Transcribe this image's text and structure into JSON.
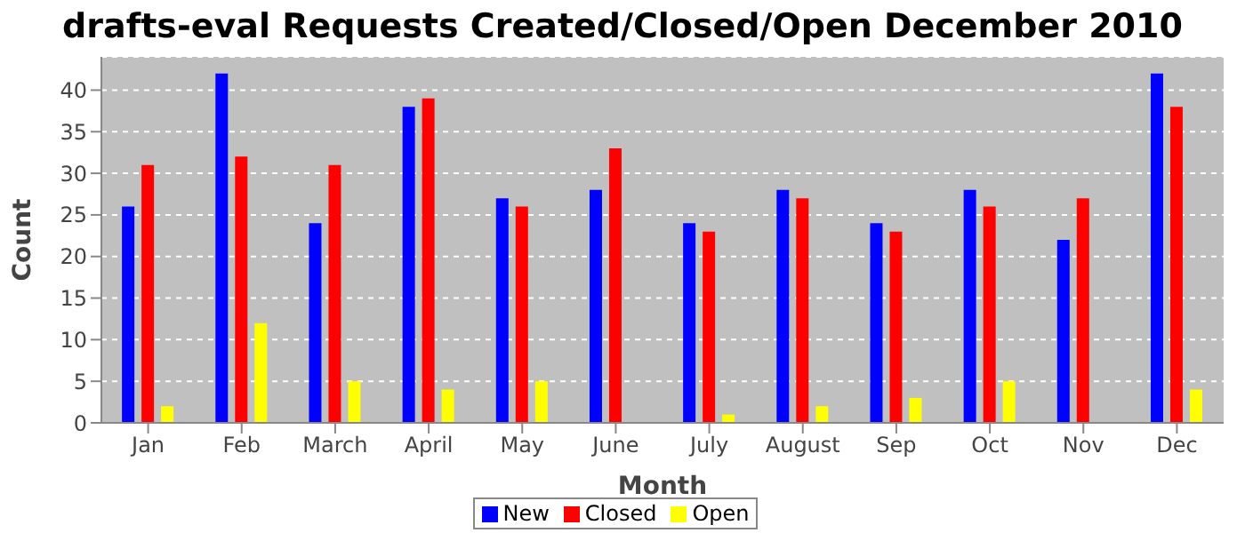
{
  "chart_data": {
    "type": "bar",
    "title": "drafts-eval Requests Created/Closed/Open December 2010",
    "xlabel": "Month",
    "ylabel": "Count",
    "categories": [
      "Jan",
      "Feb",
      "March",
      "April",
      "May",
      "June",
      "July",
      "August",
      "Sep",
      "Oct",
      "Nov",
      "Dec"
    ],
    "series": [
      {
        "name": "New",
        "color": "#0000ff",
        "values": [
          26,
          42,
          24,
          38,
          27,
          28,
          24,
          28,
          24,
          28,
          22,
          42
        ]
      },
      {
        "name": "Closed",
        "color": "#ff0000",
        "values": [
          31,
          32,
          31,
          39,
          26,
          33,
          23,
          27,
          23,
          26,
          27,
          38
        ]
      },
      {
        "name": "Open",
        "color": "#ffff00",
        "values": [
          2,
          12,
          5,
          4,
          5,
          0,
          1,
          2,
          3,
          5,
          0,
          4
        ]
      }
    ],
    "ylim": [
      0,
      44
    ],
    "yticks": [
      0,
      5,
      10,
      15,
      20,
      25,
      30,
      35,
      40
    ],
    "grid": "y",
    "legend": "bottom"
  }
}
